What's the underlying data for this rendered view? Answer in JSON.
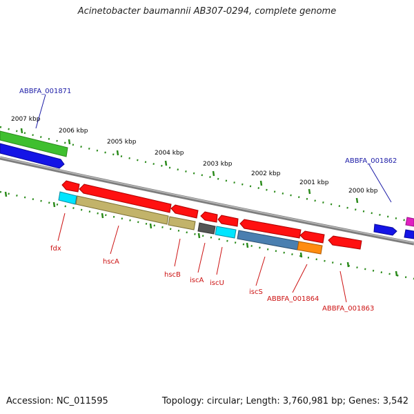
{
  "title": "Acinetobacter baumannii AB307-0294, complete genome",
  "footer": {
    "accession": "Accession: NC_011595",
    "summary": "Topology: circular; Length: 3,760,981 bp; Genes: 3,542"
  },
  "colors": {
    "forward_label": "#1a1aa6",
    "reverse_label": "#cc1111",
    "tick_green": "#2a8a1a",
    "backbone": "#888888"
  },
  "ticks": [
    "2007 kbp",
    "2006 kbp",
    "2005 kbp",
    "2004 kbp",
    "2003 kbp",
    "2002 kbp",
    "2001 kbp",
    "2000 kbp"
  ],
  "forward_labels": [
    "ABBFA_001871",
    "ABBFA_001862"
  ],
  "reverse_labels": [
    "fdx",
    "hscA",
    "hscB",
    "iscA",
    "iscU",
    "iscS",
    "ABBFA_001864",
    "ABBFA_001863"
  ]
}
